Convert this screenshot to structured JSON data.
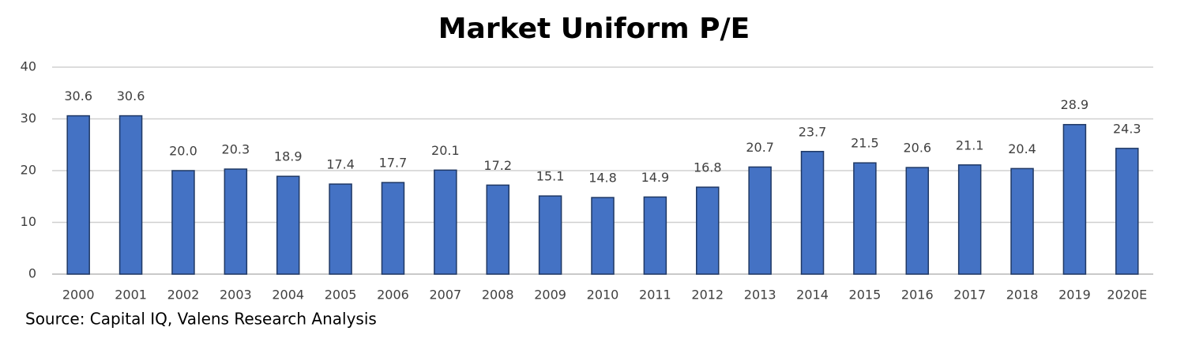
{
  "chart_data": {
    "type": "bar",
    "title": "Market Uniform P/E",
    "categories": [
      "2000",
      "2001",
      "2002",
      "2003",
      "2004",
      "2005",
      "2006",
      "2007",
      "2008",
      "2009",
      "2010",
      "2011",
      "2012",
      "2013",
      "2014",
      "2015",
      "2016",
      "2017",
      "2018",
      "2019",
      "2020E"
    ],
    "values": [
      30.6,
      30.6,
      20,
      20.3,
      18.9,
      17.4,
      17.7,
      20.1,
      17.2,
      15.1,
      14.8,
      14.9,
      16.8,
      20.7,
      23.7,
      21.5,
      20.6,
      21.1,
      20.4,
      28.9,
      24.3
    ],
    "value_labels": [
      "30.6",
      "30.6",
      "20.0",
      "20.3",
      "18.9",
      "17.4",
      "17.7",
      "20.1",
      "17.2",
      "15.1",
      "14.8",
      "14.9",
      "16.8",
      "20.7",
      "23.7",
      "21.5",
      "20.6",
      "21.1",
      "20.4",
      "28.9",
      "24.3"
    ],
    "color": "#4472c4",
    "ylim": [
      0,
      40
    ],
    "yticks": [
      0,
      10,
      20,
      30,
      40
    ],
    "grid": true,
    "source": "Source: Capital IQ, Valens Research Analysis"
  }
}
